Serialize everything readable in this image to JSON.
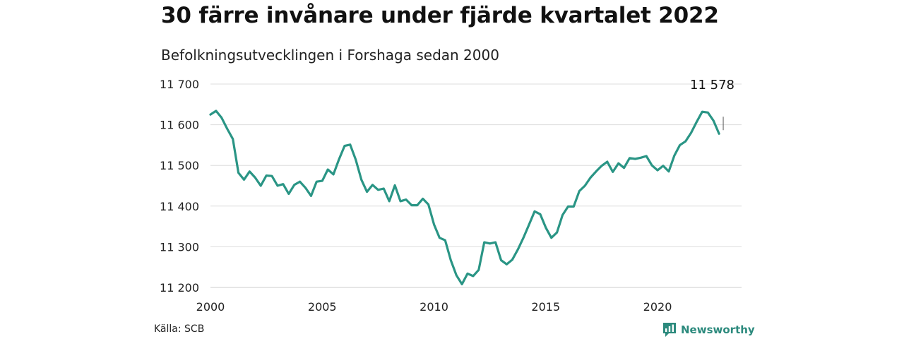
{
  "header": {
    "title": "30 färre invånare under fjärde kvartalet 2022",
    "subtitle": "Befolkningsutvecklingen i Forshaga sedan 2000"
  },
  "footer": {
    "source": "Källa: SCB",
    "brand": "Newsworthy"
  },
  "colors": {
    "line": "#2a9585",
    "grid": "#dddddd",
    "brand": "#2c8a7d"
  },
  "icons": {
    "brand_logo": "newsworthy-logo-icon"
  },
  "chart_data": {
    "type": "line",
    "title": "30 färre invånare under fjärde kvartalet 2022",
    "subtitle": "Befolkningsutvecklingen i Forshaga sedan 2000",
    "xlabel": "",
    "ylabel": "",
    "xlim": [
      2000,
      2023
    ],
    "ylim": [
      11200,
      11700
    ],
    "x_ticks": [
      2000,
      2005,
      2010,
      2015,
      2020
    ],
    "x_tick_labels": [
      "2000",
      "2005",
      "2010",
      "2015",
      "2020"
    ],
    "y_ticks": [
      11200,
      11300,
      11400,
      11500,
      11600,
      11700
    ],
    "y_tick_labels": [
      "11 200",
      "11 300",
      "11 400",
      "11 500",
      "11 600",
      "11 700"
    ],
    "grid": true,
    "legend": false,
    "annotations": [
      {
        "text": "11 578",
        "x": 2022.875,
        "y": 11578
      }
    ],
    "series": [
      {
        "x": [
          2000.0,
          2000.25,
          2000.5,
          2000.75,
          2001.0,
          2001.25,
          2001.5,
          2001.75,
          2002.0,
          2002.25,
          2002.5,
          2002.75,
          2003.0,
          2003.25,
          2003.5,
          2003.75,
          2004.0,
          2004.25,
          2004.5,
          2004.75,
          2005.0,
          2005.25,
          2005.5,
          2005.75,
          2006.0,
          2006.25,
          2006.5,
          2006.75,
          2007.0,
          2007.25,
          2007.5,
          2007.75,
          2008.0,
          2008.25,
          2008.5,
          2008.75,
          2009.0,
          2009.25,
          2009.5,
          2009.75,
          2010.0,
          2010.25,
          2010.5,
          2010.75,
          2011.0,
          2011.25,
          2011.5,
          2011.75,
          2012.0,
          2012.25,
          2012.5,
          2012.75,
          2013.0,
          2013.25,
          2013.5,
          2013.75,
          2014.0,
          2014.25,
          2014.5,
          2014.75,
          2015.0,
          2015.25,
          2015.5,
          2015.75,
          2016.0,
          2016.25,
          2016.5,
          2016.75,
          2017.0,
          2017.25,
          2017.5,
          2017.75,
          2018.0,
          2018.25,
          2018.5,
          2018.75,
          2019.0,
          2019.25,
          2019.5,
          2019.75,
          2020.0,
          2020.25,
          2020.5,
          2020.75,
          2021.0,
          2021.25,
          2021.5,
          2021.75,
          2022.0,
          2022.25,
          2022.5,
          2022.75
        ],
        "values": [
          11625,
          11634,
          11617,
          11590,
          11565,
          11482,
          11465,
          11485,
          11470,
          11450,
          11475,
          11474,
          11450,
          11454,
          11430,
          11452,
          11460,
          11445,
          11425,
          11460,
          11462,
          11490,
          11478,
          11515,
          11548,
          11551,
          11514,
          11465,
          11435,
          11452,
          11440,
          11443,
          11412,
          11451,
          11412,
          11416,
          11402,
          11402,
          11418,
          11404,
          11355,
          11322,
          11316,
          11267,
          11230,
          11208,
          11234,
          11228,
          11243,
          11311,
          11308,
          11311,
          11267,
          11257,
          11268,
          11293,
          11322,
          11354,
          11387,
          11380,
          11347,
          11322,
          11335,
          11378,
          11399,
          11399,
          11437,
          11450,
          11470,
          11485,
          11499,
          11509,
          11484,
          11505,
          11494,
          11518,
          11516,
          11519,
          11523,
          11500,
          11488,
          11499,
          11485,
          11524,
          11550,
          11559,
          11580,
          11607,
          11632,
          11630,
          11610,
          11578
        ]
      }
    ]
  }
}
